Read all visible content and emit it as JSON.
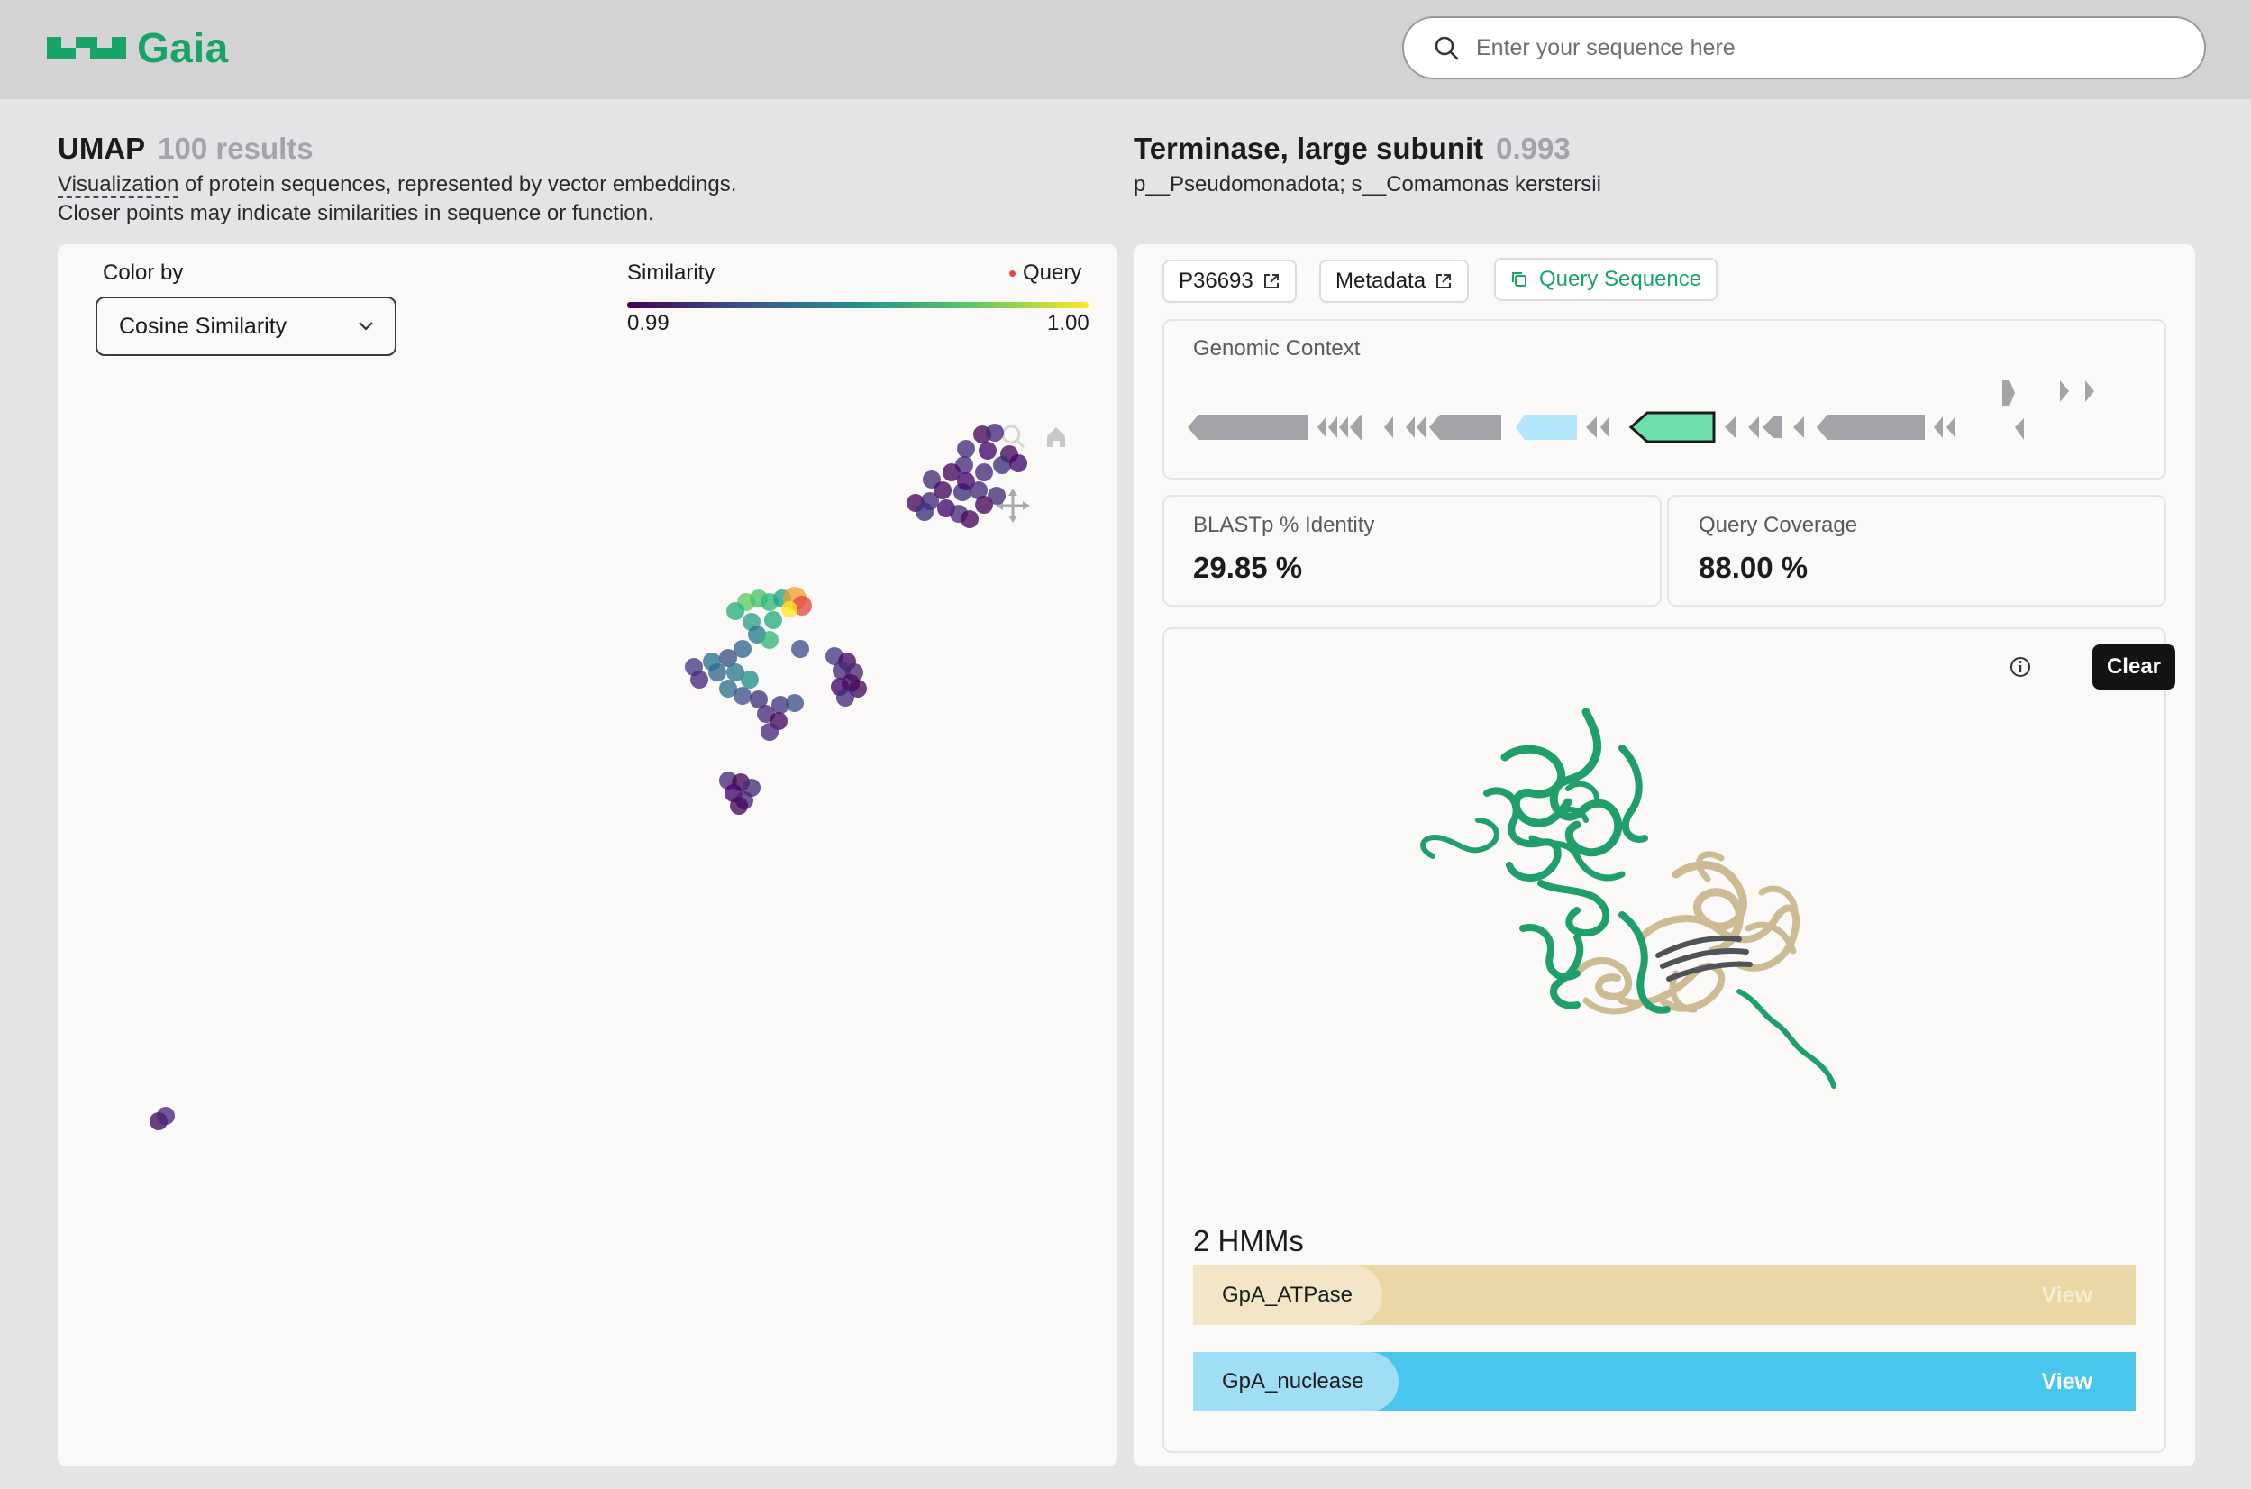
{
  "app": {
    "name": "Gaia",
    "brand_color": "#17a567"
  },
  "search": {
    "placeholder": "Enter your sequence here"
  },
  "umap": {
    "title": "UMAP",
    "results": "100 results",
    "desc_link": "Visualization",
    "desc_line1_rest": " of protein sequences, represented by vector embeddings.",
    "desc_line2": "Closer points may indicate similarities in sequence or function.",
    "color_by_label": "Color by",
    "color_by_value": "Cosine Similarity",
    "similarity_label": "Similarity",
    "query_label": "Query",
    "scale_min": "0.99",
    "scale_max": "1.00"
  },
  "detail": {
    "title": "Terminase, large subunit",
    "score": "0.993",
    "taxonomy": "p__Pseudomonadota; s__Comamonas kerstersii",
    "chips": {
      "accession": "P36693",
      "metadata": "Metadata",
      "query_sequence": "Query Sequence"
    },
    "genomic_context_label": "Genomic Context",
    "blastp_label": "BLASTp % Identity",
    "blastp_value": "29.85 %",
    "coverage_label": "Query Coverage",
    "coverage_value": "88.00 %",
    "clear_label": "Clear",
    "hmms_title": "2 HMMs",
    "hmms": [
      {
        "name": "GpA_ATPase",
        "view": "View",
        "color": "#ead7a6",
        "pill_color": "#f2e6c7"
      },
      {
        "name": "GpA_nuclease",
        "view": "View",
        "color": "#49c6ee",
        "pill_color": "#9fdef5"
      }
    ]
  }
}
